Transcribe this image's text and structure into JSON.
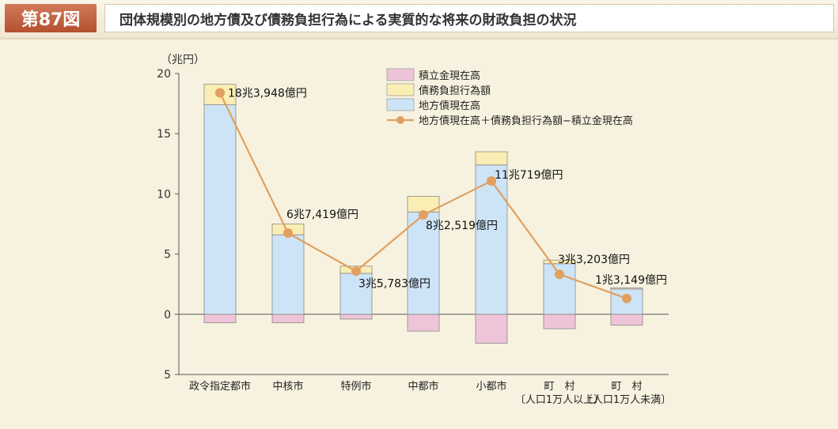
{
  "figure": {
    "number_label": "第87図",
    "title": "団体規模別の地方債及び債務負担行為による実質的な将来の財政負担の状況"
  },
  "colors": {
    "debt": "#cde4f7",
    "obligation": "#fbeeb4",
    "reserve": "#efc4d8",
    "line": "#e0a060",
    "bar_border": "#888888",
    "background": "#f7f2df"
  },
  "chart_data": {
    "type": "bar",
    "unit_label": "（兆円）",
    "ylim": [
      -5,
      20
    ],
    "yticks": [
      20,
      15,
      10,
      5,
      0,
      -5
    ],
    "ytick_labels": [
      "20",
      "15",
      "10",
      "5",
      "0",
      "5"
    ],
    "categories": [
      [
        "政令指定都市",
        ""
      ],
      [
        "中核市",
        ""
      ],
      [
        "特例市",
        ""
      ],
      [
        "中都市",
        ""
      ],
      [
        "小都市",
        ""
      ],
      [
        "町　村",
        "〔人口1万人以上〕"
      ],
      [
        "町　村",
        "〔人口1万人未満〕"
      ]
    ],
    "series": [
      {
        "name": "積立金現在高",
        "values": [
          -0.7,
          -0.7,
          -0.4,
          -1.4,
          -2.4,
          -1.2,
          -0.9
        ]
      },
      {
        "name": "債務負担行為額",
        "values": [
          1.7,
          0.9,
          0.6,
          1.3,
          1.1,
          0.3,
          0.1
        ]
      },
      {
        "name": "地方債現在高",
        "values": [
          17.4,
          6.6,
          3.4,
          8.5,
          12.4,
          4.2,
          2.1
        ]
      },
      {
        "name": "地方債現在高＋債務負担行為額−積立金現在高",
        "values": [
          18.3948,
          6.7419,
          3.5783,
          8.2519,
          11.0719,
          3.3203,
          1.3149
        ]
      }
    ],
    "data_labels": [
      "18兆3,948億円",
      "6兆7,419億円",
      "3兆5,783億円",
      "8兆2,519億円",
      "11兆719億円",
      "3兆3,203億円",
      "1兆3,149億円"
    ],
    "legend_position": "top-right",
    "grid": false
  }
}
